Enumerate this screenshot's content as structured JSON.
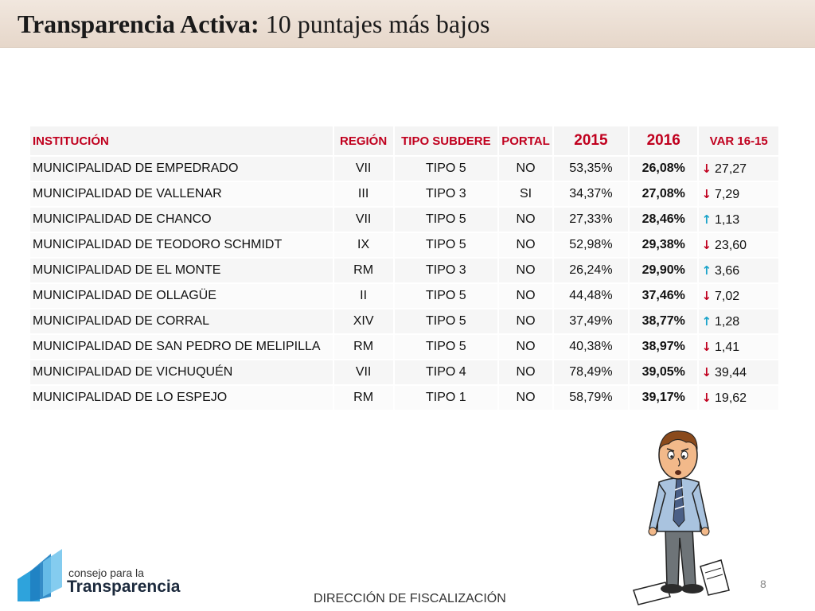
{
  "title": {
    "bold": "Transparencia Activa:",
    "rest": " 10 puntajes más bajos"
  },
  "table": {
    "headers": {
      "institucion": "INSTITUCIÓN",
      "region": "REGIÓN",
      "tipo": "TIPO SUBDERE",
      "portal": "PORTAL",
      "y2015": "2015",
      "y2016": "2016",
      "var": "VAR 16-15"
    },
    "rows": [
      {
        "institucion": "MUNICIPALIDAD DE EMPEDRADO",
        "region": "VII",
        "tipo": "TIPO 5",
        "portal": "NO",
        "p2015": "53,35%",
        "p2016": "26,08%",
        "var": "27,27",
        "dir": "down",
        "arrow": "↓"
      },
      {
        "institucion": "MUNICIPALIDAD DE VALLENAR",
        "region": "III",
        "tipo": "TIPO 3",
        "portal": "SI",
        "p2015": "34,37%",
        "p2016": "27,08%",
        "var": "7,29",
        "dir": "down",
        "arrow": "↓"
      },
      {
        "institucion": "MUNICIPALIDAD DE CHANCO",
        "region": "VII",
        "tipo": "TIPO 5",
        "portal": "NO",
        "p2015": "27,33%",
        "p2016": "28,46%",
        "var": "1,13",
        "dir": "up",
        "arrow": "↑"
      },
      {
        "institucion": "MUNICIPALIDAD DE TEODORO SCHMIDT",
        "region": "IX",
        "tipo": "TIPO 5",
        "portal": "NO",
        "p2015": "52,98%",
        "p2016": "29,38%",
        "var": "23,60",
        "dir": "down",
        "arrow": "↓"
      },
      {
        "institucion": "MUNICIPALIDAD DE EL MONTE",
        "region": "RM",
        "tipo": "TIPO 3",
        "portal": "NO",
        "p2015": "26,24%",
        "p2016": "29,90%",
        "var": "3,66",
        "dir": "up",
        "arrow": "↑"
      },
      {
        "institucion": "MUNICIPALIDAD DE OLLAGÜE",
        "region": "II",
        "tipo": "TIPO 5",
        "portal": "NO",
        "p2015": "44,48%",
        "p2016": "37,46%",
        "var": "7,02",
        "dir": "down",
        "arrow": "↓"
      },
      {
        "institucion": "MUNICIPALIDAD DE CORRAL",
        "region": "XIV",
        "tipo": "TIPO 5",
        "portal": "NO",
        "p2015": "37,49%",
        "p2016": "38,77%",
        "var": "1,28",
        "dir": "up",
        "arrow": "↑"
      },
      {
        "institucion": "MUNICIPALIDAD DE SAN PEDRO DE MELIPILLA",
        "region": "RM",
        "tipo": "TIPO 5",
        "portal": "NO",
        "p2015": "40,38%",
        "p2016": "38,97%",
        "var": "1,41",
        "dir": "down",
        "arrow": "↓"
      },
      {
        "institucion": "MUNICIPALIDAD DE VICHUQUÉN",
        "region": "VII",
        "tipo": "TIPO 4",
        "portal": "NO",
        "p2015": "78,49%",
        "p2016": "39,05%",
        "var": "39,44",
        "dir": "down",
        "arrow": "↓"
      },
      {
        "institucion": "MUNICIPALIDAD DE LO ESPEJO",
        "region": "RM",
        "tipo": "TIPO 1",
        "portal": "NO",
        "p2015": "58,79%",
        "p2016": "39,17%",
        "var": "19,62",
        "dir": "down",
        "arrow": "↓"
      }
    ]
  },
  "colors": {
    "header_text": "#c0001e",
    "arrow_down": "#c0001e",
    "arrow_up": "#1aa3c9",
    "title_bar": "#e9ddd2"
  },
  "logo": {
    "small_text": "consejo para la",
    "big_text": "Transparencia"
  },
  "footer": {
    "text": "DIRECCIÓN DE FISCALIZACIÓN",
    "page_number": "8"
  }
}
